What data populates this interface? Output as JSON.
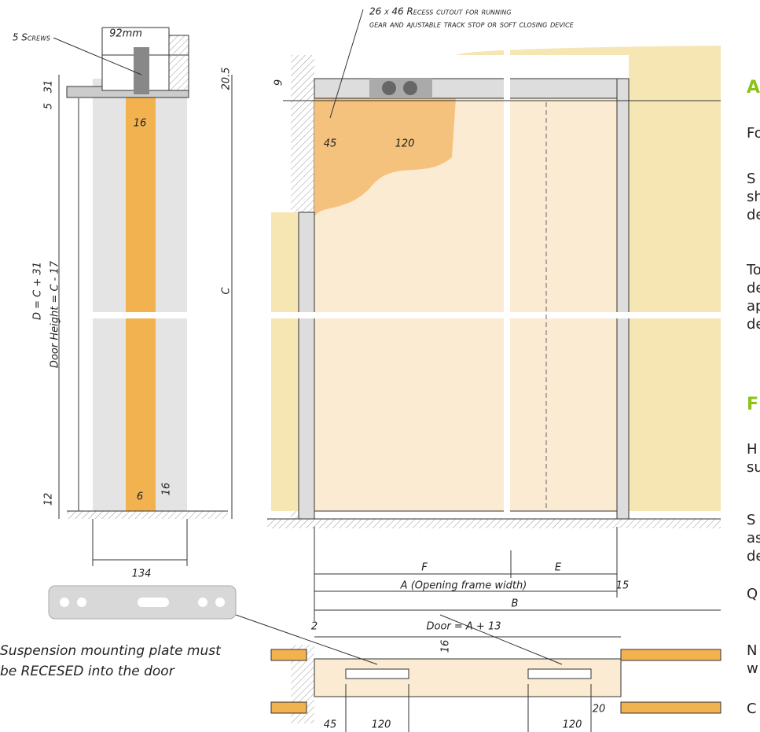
{
  "header_note": [
    "26 x 46 Recess cutout for running",
    "gear and ajustable track stop or soft closing device"
  ],
  "side_section": {
    "labels": [
      "5 Screws",
      "92mm",
      "31",
      "20.5",
      "5",
      "16",
      "D = C + 31",
      "Door Height = C - 17",
      "C",
      "6",
      "16",
      "12",
      "134"
    ]
  },
  "elevation": {
    "labels": [
      "9",
      "45",
      "120",
      "F",
      "E",
      "A (Opening frame width)",
      "15",
      "B"
    ]
  },
  "plan": {
    "labels": [
      "2",
      "Door = A + 13",
      "16",
      "45",
      "120",
      "120",
      "20"
    ]
  },
  "plate_note": [
    "Suspension mounting plate must",
    "be RECESED into the door"
  ],
  "side_panel": {
    "headings": [
      "A",
      "F"
    ],
    "lines": [
      "Fo",
      "S",
      "sh",
      "de",
      "To",
      "de",
      "ap",
      "de",
      "H",
      "su",
      "S",
      "as",
      "de",
      "Q",
      "N",
      "w",
      "C"
    ]
  }
}
